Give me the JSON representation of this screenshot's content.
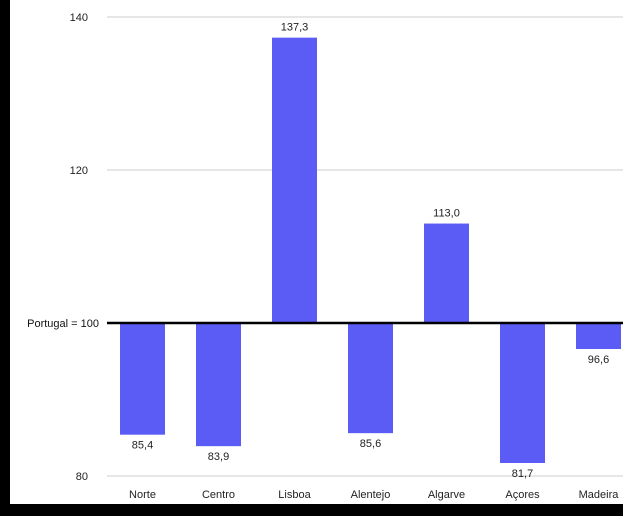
{
  "chart_data": {
    "type": "bar",
    "baseline": 100,
    "baseline_label": "Portugal = 100",
    "categories": [
      "Norte",
      "Centro",
      "Lisboa",
      "Alentejo",
      "Algarve",
      "Açores",
      "Madeira"
    ],
    "values": [
      85.4,
      83.9,
      137.3,
      85.6,
      113.0,
      81.7,
      96.6
    ],
    "value_labels": [
      "85,4",
      "83,9",
      "137,3",
      "85,6",
      "113,0",
      "81,7",
      "96,6"
    ],
    "yticks": [
      80,
      120,
      140
    ],
    "ylim": [
      80,
      140
    ],
    "grid": true,
    "bar_color": "#5b5bf5",
    "grid_color": "#cccccc",
    "baseline_color": "#000000"
  }
}
